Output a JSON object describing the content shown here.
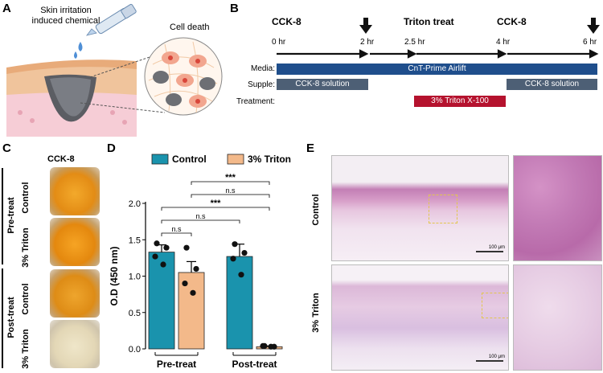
{
  "panels": {
    "a": "A",
    "b": "B",
    "c": "C",
    "d": "D",
    "e": "E"
  },
  "panel_a": {
    "label_chemical": "Skin irritation\ninduced chemical",
    "label_cell_death": "Cell death"
  },
  "panel_b": {
    "events": {
      "cck8_first": "CCK-8",
      "triton": "Triton treat",
      "cck8_second": "CCK-8"
    },
    "time_labels": [
      "0 hr",
      "2 hr",
      "2.5 hr",
      "4 hr",
      "6 hr"
    ],
    "row_labels": {
      "media": "Media:",
      "supple": "Supple:",
      "treatment": "Treatment:"
    },
    "bars": {
      "media": "CnT-Prime Airlift",
      "supple_1": "CCK-8 solution",
      "supple_2": "CCK-8 solution",
      "treatment": "3% Triton X-100"
    },
    "colors": {
      "media": "#1f4e8c",
      "supple": "#4d5f75",
      "treatment": "#b5122e"
    }
  },
  "panel_c": {
    "title": "CCK-8",
    "group_labels": [
      "Pre-treat",
      "Post-treat"
    ],
    "well_labels": [
      "Control",
      "3% Triton",
      "Control",
      "3% Triton"
    ]
  },
  "panel_e": {
    "row_labels": [
      "Control",
      "3% Triton"
    ],
    "scale_bar": "100 μm"
  },
  "chart_data": {
    "type": "bar",
    "legend": [
      {
        "name": "Control",
        "color": "#1a93ad"
      },
      {
        "name": "3% Triton",
        "color": "#f3b98a"
      }
    ],
    "ylabel": "O.D (450 nm)",
    "ylim": [
      0,
      2.0
    ],
    "yticks": [
      "0.0",
      "0.5",
      "1.0",
      "1.5",
      "2.0"
    ],
    "groups": [
      "Pre-treat",
      "Post-treat"
    ],
    "series": [
      {
        "name": "Control",
        "values": [
          1.33,
          1.27
        ],
        "sem": [
          0.1,
          0.17
        ],
        "points": [
          [
            1.45,
            1.39,
            1.27,
            1.16
          ],
          [
            1.44,
            1.32,
            1.24,
            1.02
          ]
        ]
      },
      {
        "name": "3% Triton",
        "values": [
          1.05,
          0.03
        ],
        "sem": [
          0.15,
          0.01
        ],
        "points": [
          [
            1.39,
            1.1,
            0.9,
            0.77
          ],
          [
            0.04,
            0.03,
            0.04,
            0.03
          ]
        ]
      }
    ],
    "significance": [
      "***",
      "n.s",
      "***",
      "n.s",
      "n.s"
    ]
  }
}
